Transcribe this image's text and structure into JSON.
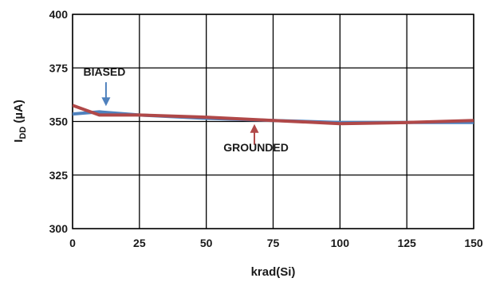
{
  "chart_data": {
    "type": "line",
    "xlabel": "krad(Si)",
    "ylabel_main": "I",
    "ylabel_sub": "DD",
    "ylabel_unit": " (µA)",
    "xlim": [
      0,
      150
    ],
    "ylim": [
      300,
      400
    ],
    "x_ticks": [
      0,
      25,
      50,
      75,
      100,
      125,
      150
    ],
    "y_ticks": [
      300,
      325,
      350,
      375,
      400
    ],
    "x_tick_labels": [
      "0",
      "25",
      "50",
      "75",
      "100",
      "125",
      "150"
    ],
    "y_tick_labels": [
      "300",
      "325",
      "350",
      "375",
      "400"
    ],
    "grid": true,
    "series": [
      {
        "name": "BIASED",
        "color": "#4f81bd",
        "x": [
          0,
          10,
          25,
          50,
          75,
          100,
          125,
          150
        ],
        "y": [
          353.5,
          354.5,
          353,
          351.5,
          350.5,
          349.5,
          349.5,
          349.5
        ]
      },
      {
        "name": "GROUNDED",
        "color": "#b04848",
        "x": [
          0,
          10,
          25,
          50,
          75,
          100,
          125,
          150
        ],
        "y": [
          357.5,
          353,
          353,
          352,
          350.5,
          349,
          349.5,
          350.5
        ]
      }
    ],
    "annotations": [
      {
        "text": "BIASED",
        "series": "BIASED",
        "x": 12.5,
        "y": 354.2
      },
      {
        "text": "GROUNDED",
        "series": "GROUNDED",
        "x": 68.0,
        "y": 351.0
      }
    ]
  }
}
